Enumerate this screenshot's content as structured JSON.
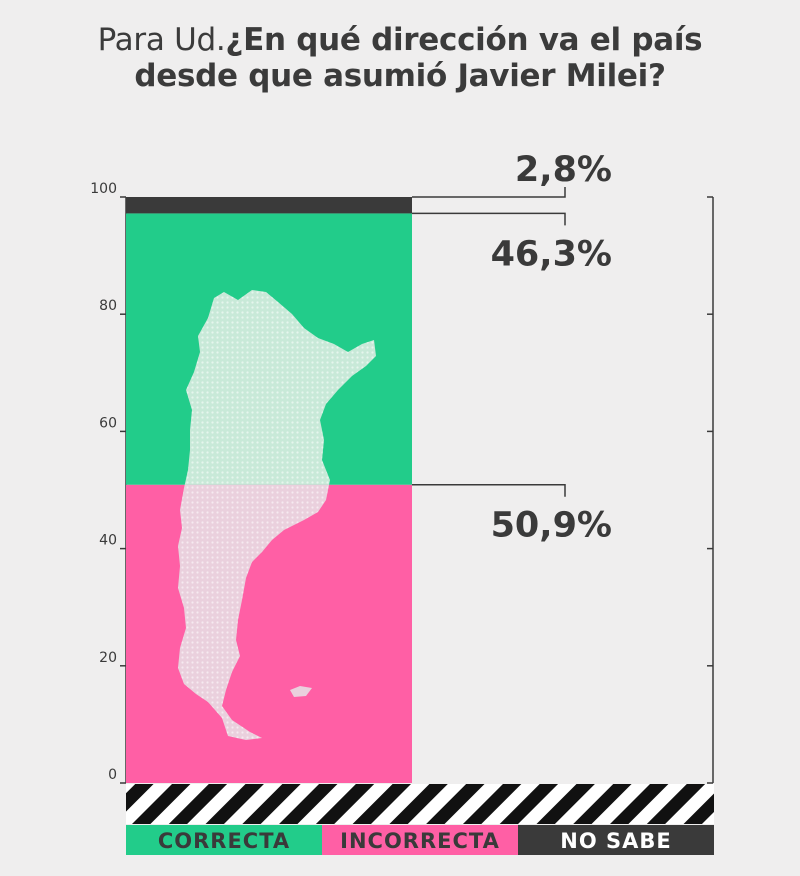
{
  "title": {
    "prefix": "Para Ud.",
    "question_line1": "¿En qué dirección va el país",
    "question_line2": "desde que asumió Javier Milei?"
  },
  "chart_data": {
    "type": "bar",
    "stacked": true,
    "title": "Para Ud.¿En qué dirección va el país desde que asumió Javier Milei?",
    "ylim": [
      0,
      100
    ],
    "yticks": [
      "0",
      "20",
      "40",
      "60",
      "80",
      "100"
    ],
    "categories": [
      ""
    ],
    "series": [
      {
        "name": "INCORRECTA",
        "values": [
          50.9
        ],
        "label": "50,9%",
        "color": "#ff5fa5"
      },
      {
        "name": "CORRECTA",
        "values": [
          46.3
        ],
        "label": "46,3%",
        "color": "#22cc8a"
      },
      {
        "name": "NO SABE",
        "values": [
          2.8
        ],
        "label": "2,8%",
        "color": "#3a3a3a"
      }
    ],
    "legend": {
      "position": "bottom",
      "items": [
        {
          "label": "CORRECTA",
          "bg": "#22cc8a",
          "fg": "#3a3a3a"
        },
        {
          "label": "INCORRECTA",
          "bg": "#ff5fa5",
          "fg": "#3a3a3a"
        },
        {
          "label": "NO SABE",
          "bg": "#3a3a3a",
          "fg": "#ffffff"
        }
      ]
    }
  },
  "map_icon": "argentina-map-icon"
}
